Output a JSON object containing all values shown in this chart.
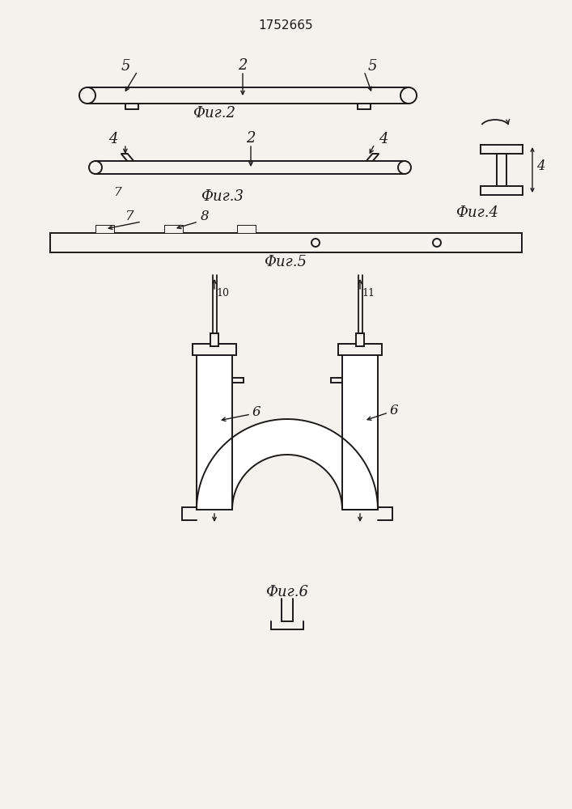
{
  "title": "1752665",
  "bg_color": "#f5f2ed",
  "line_color": "#1a1a1a",
  "fig2_label": "Фиг.2",
  "fig3_label": "Фиг.3",
  "fig4_label": "Фиг.4",
  "fig5_label": "Фиг.5",
  "fig6_label": "Фиг.6"
}
